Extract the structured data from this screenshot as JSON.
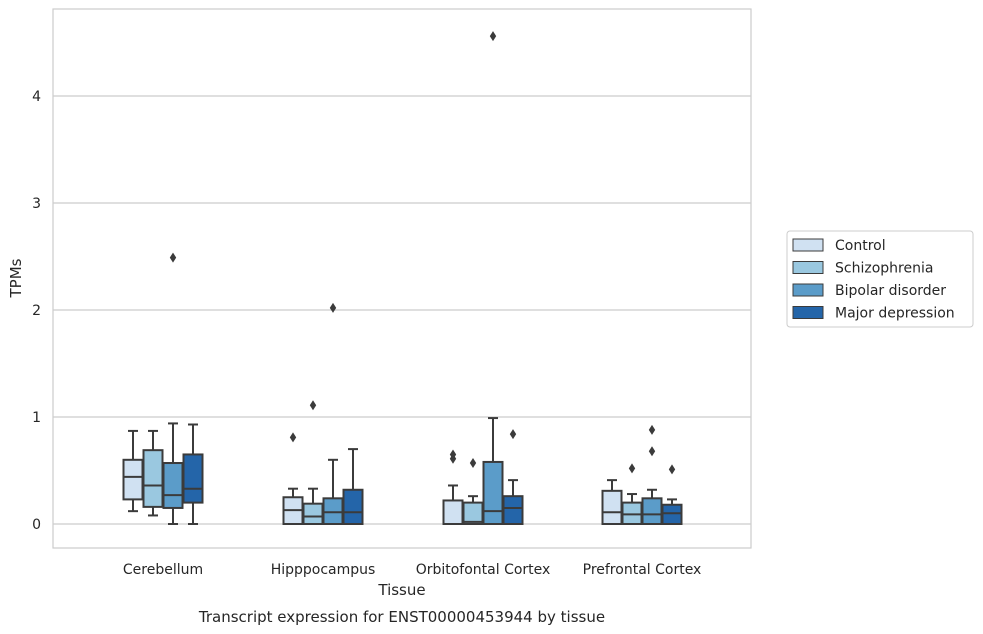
{
  "chart_data": {
    "type": "box",
    "caption": "Transcript expression for ENST00000453944 by tissue",
    "xlabel": "Tissue",
    "ylabel": "TPMs",
    "ylim": [
      -0.22,
      4.8
    ],
    "yticks": [
      0,
      1,
      2,
      3,
      4
    ],
    "grid": true,
    "legend_position": "right",
    "categories": [
      "Cerebellum",
      "Hipppocampus",
      "Orbitofontal Cortex",
      "Prefrontal Cortex"
    ],
    "series": [
      {
        "name": "Control",
        "color": "#d0e1f2",
        "boxes": [
          {
            "whisker_low": 0.12,
            "q1": 0.23,
            "median": 0.44,
            "q3": 0.6,
            "whisker_high": 0.87,
            "outliers": []
          },
          {
            "whisker_low": 0.0,
            "q1": 0.0,
            "median": 0.13,
            "q3": 0.25,
            "whisker_high": 0.33,
            "outliers": [
              0.81
            ]
          },
          {
            "whisker_low": 0.0,
            "q1": 0.0,
            "median": 0.0,
            "q3": 0.22,
            "whisker_high": 0.36,
            "outliers": [
              0.61,
              0.65
            ]
          },
          {
            "whisker_low": 0.0,
            "q1": 0.0,
            "median": 0.11,
            "q3": 0.31,
            "whisker_high": 0.41,
            "outliers": []
          }
        ]
      },
      {
        "name": "Schizophrenia",
        "color": "#9ac8e0",
        "boxes": [
          {
            "whisker_low": 0.08,
            "q1": 0.16,
            "median": 0.36,
            "q3": 0.69,
            "whisker_high": 0.87,
            "outliers": []
          },
          {
            "whisker_low": 0.0,
            "q1": 0.0,
            "median": 0.07,
            "q3": 0.19,
            "whisker_high": 0.33,
            "outliers": [
              1.11
            ]
          },
          {
            "whisker_low": 0.0,
            "q1": 0.0,
            "median": 0.02,
            "q3": 0.2,
            "whisker_high": 0.26,
            "outliers": [
              0.57
            ]
          },
          {
            "whisker_low": 0.0,
            "q1": 0.0,
            "median": 0.09,
            "q3": 0.2,
            "whisker_high": 0.28,
            "outliers": [
              0.52
            ]
          }
        ]
      },
      {
        "name": "Bipolar disorder",
        "color": "#5b9cc9",
        "boxes": [
          {
            "whisker_low": 0.0,
            "q1": 0.15,
            "median": 0.27,
            "q3": 0.57,
            "whisker_high": 0.94,
            "outliers": [
              2.49
            ]
          },
          {
            "whisker_low": 0.0,
            "q1": 0.0,
            "median": 0.11,
            "q3": 0.24,
            "whisker_high": 0.6,
            "outliers": [
              2.02
            ]
          },
          {
            "whisker_low": 0.0,
            "q1": 0.0,
            "median": 0.12,
            "q3": 0.58,
            "whisker_high": 0.99,
            "outliers": [
              4.56
            ]
          },
          {
            "whisker_low": 0.0,
            "q1": 0.0,
            "median": 0.09,
            "q3": 0.24,
            "whisker_high": 0.32,
            "outliers": [
              0.68,
              0.88
            ]
          }
        ]
      },
      {
        "name": "Major depression",
        "color": "#2465a9",
        "boxes": [
          {
            "whisker_low": 0.0,
            "q1": 0.2,
            "median": 0.33,
            "q3": 0.65,
            "whisker_high": 0.93,
            "outliers": []
          },
          {
            "whisker_low": 0.0,
            "q1": 0.0,
            "median": 0.11,
            "q3": 0.32,
            "whisker_high": 0.7,
            "outliers": []
          },
          {
            "whisker_low": 0.0,
            "q1": 0.0,
            "median": 0.15,
            "q3": 0.26,
            "whisker_high": 0.41,
            "outliers": [
              0.84
            ]
          },
          {
            "whisker_low": 0.0,
            "q1": 0.0,
            "median": 0.1,
            "q3": 0.18,
            "whisker_high": 0.23,
            "outliers": [
              0.51
            ]
          }
        ]
      }
    ]
  }
}
